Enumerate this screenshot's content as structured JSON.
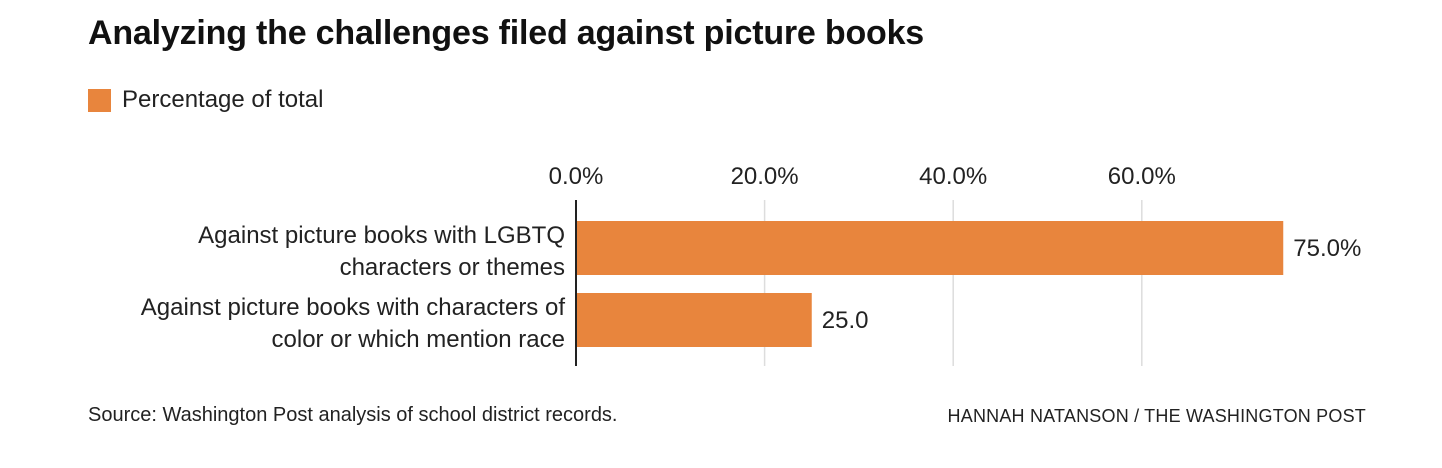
{
  "title": "Analyzing the challenges filed against picture books",
  "footer": {
    "source": "Source: Washington Post analysis of school district records.",
    "credit": "HANNAH NATANSON / THE WASHINGTON POST"
  },
  "colors": {
    "bar": "#E8853D",
    "grid": "#dddddd",
    "axis": "#222222",
    "text": "#222222"
  },
  "chart_data": {
    "type": "bar",
    "orientation": "horizontal",
    "title": "Analyzing the challenges filed against picture books",
    "legend_position": "top-left",
    "grid": true,
    "xlim": [
      0,
      75
    ],
    "ticks": [
      0,
      20,
      40,
      60
    ],
    "tick_labels": [
      "0.0%",
      "20.0%",
      "40.0%",
      "60.0%"
    ],
    "categories": [
      [
        "Against picture books with LGBTQ",
        "characters or themes"
      ],
      [
        "Against picture books with characters of",
        "color or which mention race"
      ]
    ],
    "series": [
      {
        "name": "Percentage of total",
        "values": [
          75.0,
          25.0
        ],
        "value_labels": [
          "75.0%",
          "25.0"
        ]
      }
    ]
  }
}
